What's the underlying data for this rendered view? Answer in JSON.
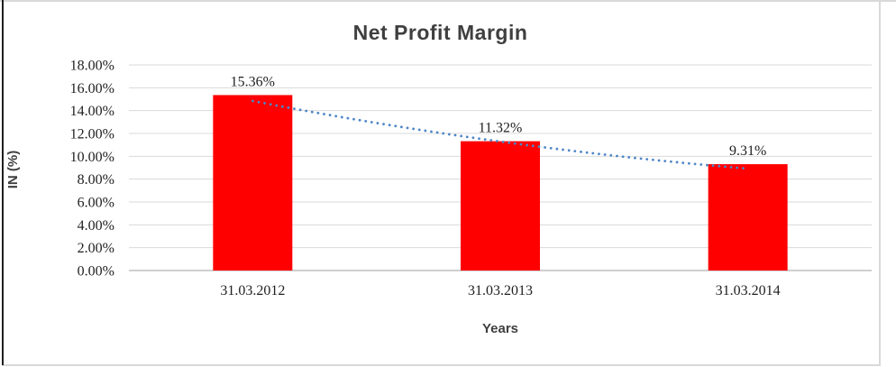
{
  "chart_data": {
    "type": "bar",
    "title": "Net Profit Margin",
    "xlabel": "Years",
    "ylabel": "IN (%)",
    "categories": [
      "31.03.2012",
      "31.03.2013",
      "31.03.2014"
    ],
    "values": [
      15.36,
      11.32,
      9.31
    ],
    "data_labels": [
      "15.36%",
      "11.32%",
      "9.31%"
    ],
    "ylim": [
      0,
      18
    ],
    "ytick_values": [
      18,
      16,
      14,
      12,
      10,
      8,
      6,
      4,
      2,
      0
    ],
    "ytick_labels": [
      "18.00%",
      "16.00%",
      "14.00%",
      "12.00%",
      "10.00%",
      "8.00%",
      "6.00%",
      "4.00%",
      "2.00%",
      "0.00%"
    ],
    "grid": true,
    "legend": "none",
    "bar_color": "#ff0000",
    "gridline_color": "#d9d9d9",
    "axis_line_color": "#bfbfbf",
    "trendline": {
      "style": "dotted",
      "color": "#4e86c6",
      "values": [
        14.84,
        11.29,
        8.92
      ]
    }
  },
  "window": {
    "background": "#ffffff",
    "outer_border_color": "#d9d9d9",
    "left_edge_color": "#1f1f1f"
  }
}
